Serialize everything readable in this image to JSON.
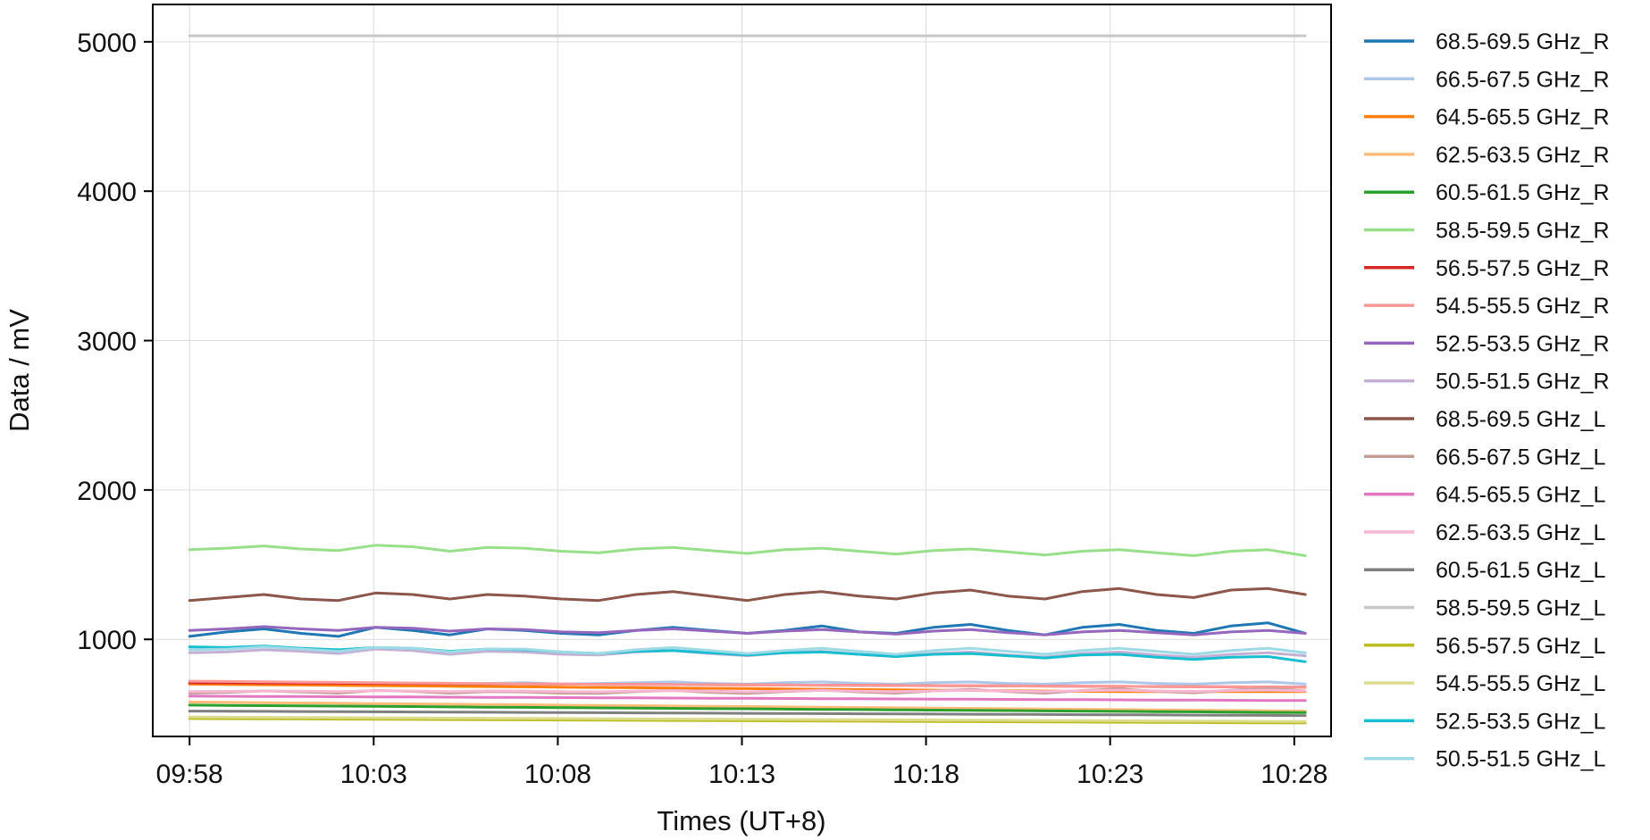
{
  "chart_data": {
    "type": "line",
    "title": "",
    "xlabel": "Times (UT+8)",
    "ylabel": "Data / mV",
    "grid": true,
    "legend_position": "outside-right",
    "x_range": [
      "09:57",
      "10:29"
    ],
    "y_range": [
      350,
      5250
    ],
    "x_ticks": [
      "09:58",
      "10:03",
      "10:08",
      "10:13",
      "10:18",
      "10:23",
      "10:28"
    ],
    "y_ticks": [
      1000,
      2000,
      3000,
      4000,
      5000
    ],
    "x_start": "09:58",
    "x_end": "10:28",
    "series": [
      {
        "name": "68.5-69.5 GHz_R",
        "color": "#1f77b4",
        "values": [
          1020,
          1050,
          1070,
          1040,
          1020,
          1080,
          1060,
          1030,
          1070,
          1060,
          1040,
          1030,
          1060,
          1080,
          1060,
          1040,
          1060,
          1090,
          1050,
          1040,
          1080,
          1100,
          1060,
          1030,
          1080,
          1100,
          1060,
          1040,
          1090,
          1110,
          1040
        ]
      },
      {
        "name": "66.5-67.5 GHz_R",
        "color": "#aec7e8",
        "values": [
          700,
          705,
          710,
          705,
          700,
          710,
          705,
          700,
          705,
          710,
          700,
          705,
          710,
          715,
          705,
          700,
          710,
          715,
          705,
          700,
          710,
          715,
          705,
          700,
          710,
          715,
          705,
          700,
          710,
          715,
          700
        ]
      },
      {
        "name": "64.5-65.5 GHz_R",
        "color": "#ff7f0e",
        "values": [
          700,
          698,
          696,
          694,
          692,
          690,
          688,
          686,
          684,
          682,
          680,
          678,
          676,
          674,
          672,
          670,
          668,
          666,
          664,
          662,
          660,
          658,
          656,
          654,
          652,
          650,
          650,
          650,
          650,
          650,
          650
        ]
      },
      {
        "name": "62.5-63.5 GHz_R",
        "color": "#ffbb78",
        "values": [
          580,
          578,
          576,
          574,
          572,
          570,
          568,
          566,
          564,
          562,
          560,
          558,
          556,
          554,
          552,
          550,
          548,
          546,
          544,
          542,
          540,
          538,
          536,
          534,
          532,
          530,
          528,
          526,
          524,
          522,
          520
        ]
      },
      {
        "name": "60.5-61.5 GHz_R",
        "color": "#2ca02c",
        "values": [
          560,
          558,
          556,
          555,
          553,
          552,
          550,
          548,
          546,
          545,
          543,
          541,
          540,
          538,
          536,
          535,
          533,
          531,
          530,
          528,
          526,
          525,
          523,
          521,
          520,
          518,
          516,
          515,
          513,
          511,
          510
        ]
      },
      {
        "name": "58.5-59.5 GHz_R",
        "color": "#98df8a",
        "values": [
          1600,
          1610,
          1625,
          1605,
          1595,
          1630,
          1620,
          1590,
          1615,
          1610,
          1590,
          1580,
          1605,
          1615,
          1595,
          1575,
          1600,
          1610,
          1590,
          1570,
          1595,
          1605,
          1585,
          1565,
          1590,
          1600,
          1580,
          1560,
          1590,
          1600,
          1560
        ]
      },
      {
        "name": "56.5-57.5 GHz_R",
        "color": "#d62728",
        "values": [
          710,
          709,
          708,
          707,
          706,
          705,
          704,
          703,
          702,
          701,
          700,
          699,
          698,
          697,
          696,
          695,
          694,
          693,
          692,
          691,
          690,
          689,
          688,
          687,
          686,
          685,
          684,
          683,
          682,
          681,
          680
        ]
      },
      {
        "name": "54.5-55.5 GHz_R",
        "color": "#ff9896",
        "values": [
          720,
          718,
          716,
          714,
          712,
          710,
          708,
          706,
          704,
          702,
          700,
          699,
          698,
          697,
          696,
          695,
          694,
          693,
          692,
          691,
          690,
          689,
          688,
          687,
          686,
          685,
          684,
          683,
          682,
          681,
          680
        ]
      },
      {
        "name": "52.5-53.5 GHz_R",
        "color": "#9467bd",
        "values": [
          1060,
          1070,
          1085,
          1070,
          1060,
          1080,
          1075,
          1055,
          1070,
          1065,
          1050,
          1045,
          1060,
          1070,
          1055,
          1040,
          1055,
          1065,
          1050,
          1035,
          1055,
          1065,
          1045,
          1030,
          1050,
          1060,
          1045,
          1030,
          1050,
          1060,
          1040
        ]
      },
      {
        "name": "50.5-51.5 GHz_R",
        "color": "#c5b0d5",
        "values": [
          910,
          915,
          930,
          920,
          905,
          935,
          925,
          900,
          920,
          915,
          900,
          895,
          915,
          925,
          905,
          890,
          910,
          920,
          900,
          885,
          905,
          915,
          895,
          880,
          905,
          915,
          895,
          880,
          900,
          910,
          890
        ]
      },
      {
        "name": "68.5-69.5 GHz_L",
        "color": "#8c564b",
        "values": [
          1260,
          1280,
          1300,
          1270,
          1260,
          1310,
          1300,
          1270,
          1300,
          1290,
          1270,
          1260,
          1300,
          1320,
          1290,
          1260,
          1300,
          1320,
          1290,
          1270,
          1310,
          1330,
          1290,
          1270,
          1320,
          1340,
          1300,
          1280,
          1330,
          1340,
          1300
        ]
      },
      {
        "name": "66.5-67.5 GHz_L",
        "color": "#c49c94",
        "values": [
          640,
          645,
          655,
          648,
          640,
          658,
          652,
          640,
          650,
          648,
          640,
          638,
          650,
          658,
          645,
          638,
          650,
          660,
          648,
          640,
          655,
          665,
          650,
          640,
          658,
          668,
          652,
          642,
          660,
          670,
          655
        ]
      },
      {
        "name": "64.5-65.5 GHz_L",
        "color": "#e377c2",
        "values": [
          620,
          619,
          618,
          617,
          616,
          615,
          614,
          613,
          612,
          611,
          610,
          609,
          608,
          607,
          606,
          605,
          604,
          603,
          602,
          601,
          600,
          599,
          598,
          597,
          596,
          595,
          594,
          593,
          592,
          591,
          590
        ]
      },
      {
        "name": "62.5-63.5 GHz_L",
        "color": "#f7b6d2",
        "values": [
          650,
          652,
          655,
          653,
          650,
          656,
          654,
          650,
          655,
          654,
          650,
          649,
          654,
          657,
          653,
          649,
          654,
          658,
          653,
          650,
          655,
          659,
          654,
          650,
          656,
          660,
          655,
          651,
          657,
          661,
          655
        ]
      },
      {
        "name": "60.5-61.5 GHz_L",
        "color": "#7f7f7f",
        "values": [
          520,
          519,
          518,
          517,
          516,
          515,
          514,
          513,
          512,
          511,
          510,
          509,
          508,
          507,
          506,
          505,
          504,
          503,
          502,
          501,
          500,
          499,
          498,
          497,
          496,
          495,
          494,
          493,
          492,
          491,
          490
        ]
      },
      {
        "name": "58.5-59.5 GHz_L",
        "color": "#c7c7c7",
        "values": [
          5040,
          5040,
          5040,
          5040,
          5040,
          5040,
          5040,
          5040,
          5040,
          5040,
          5040,
          5040,
          5040,
          5040,
          5040,
          5040,
          5040,
          5040,
          5040,
          5040,
          5040,
          5040,
          5040,
          5040,
          5040,
          5040,
          5040,
          5040,
          5040,
          5040,
          5040
        ]
      },
      {
        "name": "56.5-57.5 GHz_L",
        "color": "#bcbd22",
        "values": [
          470,
          469,
          468,
          467,
          466,
          465,
          464,
          463,
          462,
          461,
          460,
          459,
          458,
          457,
          456,
          455,
          454,
          453,
          452,
          451,
          450,
          449,
          448,
          447,
          446,
          445,
          444,
          443,
          442,
          441,
          440
        ]
      },
      {
        "name": "54.5-55.5 GHz_L",
        "color": "#dbdb8d",
        "values": [
          480,
          479,
          478,
          477,
          476,
          475,
          474,
          473,
          472,
          471,
          470,
          469,
          468,
          467,
          466,
          465,
          464,
          463,
          462,
          461,
          460,
          459,
          458,
          457,
          456,
          455,
          454,
          453,
          452,
          451,
          450
        ]
      },
      {
        "name": "52.5-53.5 GHz_L",
        "color": "#17becf",
        "values": [
          950,
          945,
          955,
          940,
          930,
          945,
          940,
          920,
          935,
          930,
          915,
          905,
          920,
          925,
          910,
          895,
          910,
          915,
          900,
          885,
          900,
          905,
          890,
          875,
          895,
          900,
          880,
          865,
          880,
          885,
          850
        ]
      },
      {
        "name": "50.5-51.5 GHz_L",
        "color": "#9edae5",
        "values": [
          930,
          935,
          950,
          935,
          920,
          945,
          940,
          915,
          935,
          935,
          915,
          905,
          930,
          945,
          925,
          905,
          925,
          940,
          920,
          900,
          925,
          940,
          920,
          900,
          925,
          940,
          920,
          900,
          925,
          940,
          910
        ]
      }
    ]
  }
}
